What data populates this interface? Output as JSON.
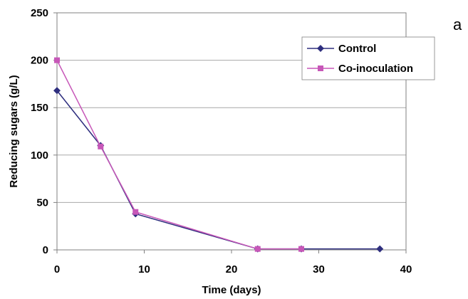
{
  "panel_label": "a",
  "colors": {
    "control": "#2E2E7E",
    "coinoculation": "#C757B8",
    "grid": "#a8a8a8",
    "axis": "#808080"
  },
  "chart_data": {
    "type": "line",
    "xlabel": "Time (days)",
    "ylabel": "Reducing sugars (g/L)",
    "xlim": [
      0,
      40
    ],
    "ylim": [
      0,
      250
    ],
    "xticks": [
      0,
      10,
      20,
      30,
      40
    ],
    "yticks": [
      0,
      50,
      100,
      150,
      200,
      250
    ],
    "grid": "horizontal",
    "legend_position": "top-right",
    "series": [
      {
        "name": "Control",
        "marker": "diamond",
        "color": "#2E2E7E",
        "points": [
          [
            0,
            168
          ],
          [
            5,
            110
          ],
          [
            9,
            38
          ],
          [
            23,
            1
          ],
          [
            28,
            1
          ],
          [
            37,
            1
          ]
        ]
      },
      {
        "name": "Co-inoculation",
        "marker": "square",
        "color": "#C757B8",
        "points": [
          [
            0,
            200
          ],
          [
            5,
            109
          ],
          [
            9,
            40
          ],
          [
            23,
            1
          ],
          [
            28,
            1
          ]
        ]
      }
    ]
  }
}
